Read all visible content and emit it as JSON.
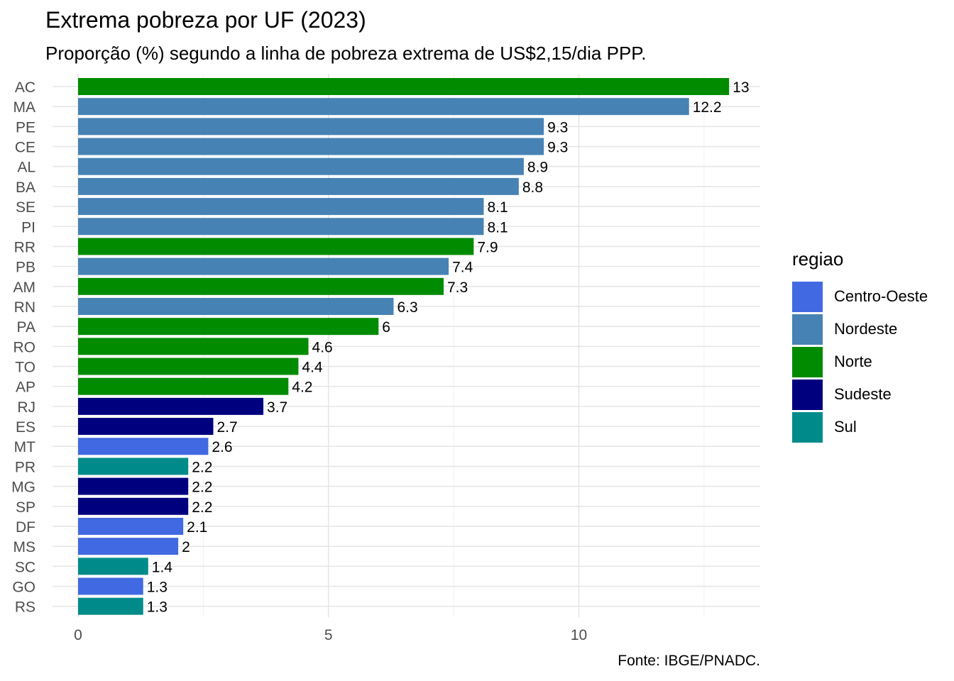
{
  "chart_data": {
    "type": "bar",
    "orientation": "horizontal",
    "title": "Extrema pobreza por UF (2023)",
    "subtitle": "Proporção (%) segundo a linha de pobreza extrema de US$2,15/dia PPP.",
    "caption": "Fonte: IBGE/PNADC.",
    "xlabel": "",
    "ylabel": "",
    "xlim": [
      0,
      13
    ],
    "x_ticks": [
      "0",
      "5",
      "10"
    ],
    "grid": true,
    "legend": {
      "title": "regiao",
      "placement": "right",
      "items": [
        {
          "name": "Centro-Oeste",
          "color": "#4169E1"
        },
        {
          "name": "Nordeste",
          "color": "#4682B4"
        },
        {
          "name": "Norte",
          "color": "#008B00"
        },
        {
          "name": "Sudeste",
          "color": "#00007F"
        },
        {
          "name": "Sul",
          "color": "#008B8B"
        }
      ]
    },
    "bars": [
      {
        "category": "AC",
        "value": 13,
        "label": "13",
        "region": "Norte"
      },
      {
        "category": "MA",
        "value": 12.2,
        "label": "12.2",
        "region": "Nordeste"
      },
      {
        "category": "PE",
        "value": 9.3,
        "label": "9.3",
        "region": "Nordeste"
      },
      {
        "category": "CE",
        "value": 9.3,
        "label": "9.3",
        "region": "Nordeste"
      },
      {
        "category": "AL",
        "value": 8.9,
        "label": "8.9",
        "region": "Nordeste"
      },
      {
        "category": "BA",
        "value": 8.8,
        "label": "8.8",
        "region": "Nordeste"
      },
      {
        "category": "SE",
        "value": 8.1,
        "label": "8.1",
        "region": "Nordeste"
      },
      {
        "category": "PI",
        "value": 8.1,
        "label": "8.1",
        "region": "Nordeste"
      },
      {
        "category": "RR",
        "value": 7.9,
        "label": "7.9",
        "region": "Norte"
      },
      {
        "category": "PB",
        "value": 7.4,
        "label": "7.4",
        "region": "Nordeste"
      },
      {
        "category": "AM",
        "value": 7.3,
        "label": "7.3",
        "region": "Norte"
      },
      {
        "category": "RN",
        "value": 6.3,
        "label": "6.3",
        "region": "Nordeste"
      },
      {
        "category": "PA",
        "value": 6,
        "label": "6",
        "region": "Norte"
      },
      {
        "category": "RO",
        "value": 4.6,
        "label": "4.6",
        "region": "Norte"
      },
      {
        "category": "TO",
        "value": 4.4,
        "label": "4.4",
        "region": "Norte"
      },
      {
        "category": "AP",
        "value": 4.2,
        "label": "4.2",
        "region": "Norte"
      },
      {
        "category": "RJ",
        "value": 3.7,
        "label": "3.7",
        "region": "Sudeste"
      },
      {
        "category": "ES",
        "value": 2.7,
        "label": "2.7",
        "region": "Sudeste"
      },
      {
        "category": "MT",
        "value": 2.6,
        "label": "2.6",
        "region": "Centro-Oeste"
      },
      {
        "category": "PR",
        "value": 2.2,
        "label": "2.2",
        "region": "Sul"
      },
      {
        "category": "MG",
        "value": 2.2,
        "label": "2.2",
        "region": "Sudeste"
      },
      {
        "category": "SP",
        "value": 2.2,
        "label": "2.2",
        "region": "Sudeste"
      },
      {
        "category": "DF",
        "value": 2.1,
        "label": "2.1",
        "region": "Centro-Oeste"
      },
      {
        "category": "MS",
        "value": 2,
        "label": "2",
        "region": "Centro-Oeste"
      },
      {
        "category": "SC",
        "value": 1.4,
        "label": "1.4",
        "region": "Sul"
      },
      {
        "category": "GO",
        "value": 1.3,
        "label": "1.3",
        "region": "Centro-Oeste"
      },
      {
        "category": "RS",
        "value": 1.3,
        "label": "1.3",
        "region": "Sul"
      }
    ]
  }
}
